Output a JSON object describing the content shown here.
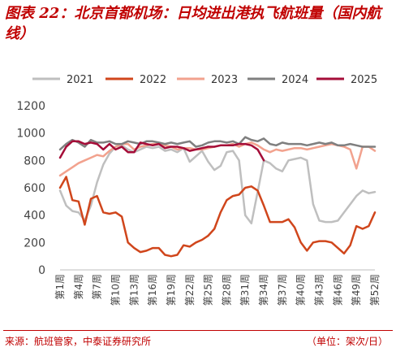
{
  "header": {
    "title": "图表 22：北京首都机场：日均进出港执飞航班量（国内航线）"
  },
  "footer": {
    "source": "来源：航班管家，中泰证券研究所",
    "unit": "（单位：架次/日）"
  },
  "chart_data": {
    "type": "line",
    "title": "图表 22：北京首都机场：日均进出港执飞航班量（国内航线）",
    "unit": "（单位：架次/日）",
    "ylim": [
      0,
      1200
    ],
    "yticks": [
      0,
      200,
      400,
      600,
      800,
      1000,
      1200
    ],
    "xlim": [
      1,
      52
    ],
    "xtick_positions": [
      1,
      4,
      7,
      10,
      13,
      16,
      19,
      22,
      25,
      28,
      31,
      34,
      37,
      40,
      43,
      46,
      49,
      52
    ],
    "xtick_labels": [
      "第1周",
      "第4周",
      "第7周",
      "第10周",
      "第13周",
      "第16周",
      "第19周",
      "第22周",
      "第25周",
      "第28周",
      "第31周",
      "第34周",
      "第37周",
      "第40周",
      "第43周",
      "第46周",
      "第49周",
      "第52周"
    ],
    "legend_position": "top",
    "grid": false,
    "series": [
      {
        "name": "2021",
        "color": "#bfbfbf",
        "x": [
          1,
          2,
          3,
          4,
          5,
          6,
          7,
          8,
          9,
          10,
          11,
          12,
          13,
          14,
          15,
          16,
          17,
          18,
          19,
          20,
          21,
          22,
          23,
          24,
          25,
          26,
          27,
          28,
          29,
          30,
          31,
          32,
          33,
          34,
          35,
          36,
          37,
          38,
          39,
          40,
          41,
          42,
          43,
          44,
          45,
          46,
          47,
          48,
          49,
          50,
          51,
          52
        ],
        "y": [
          580,
          470,
          430,
          420,
          360,
          470,
          640,
          770,
          850,
          900,
          910,
          880,
          860,
          880,
          900,
          890,
          900,
          870,
          880,
          860,
          890,
          790,
          830,
          870,
          790,
          730,
          760,
          860,
          870,
          800,
          400,
          340,
          570,
          800,
          780,
          740,
          720,
          800,
          810,
          820,
          800,
          480,
          360,
          350,
          350,
          360,
          420,
          480,
          540,
          580,
          560,
          570
        ]
      },
      {
        "name": "2022",
        "color": "#d0461c",
        "x": [
          1,
          2,
          3,
          4,
          5,
          6,
          7,
          8,
          9,
          10,
          11,
          12,
          13,
          14,
          15,
          16,
          17,
          18,
          19,
          20,
          21,
          22,
          23,
          24,
          25,
          26,
          27,
          28,
          29,
          30,
          31,
          32,
          33,
          34,
          35,
          36,
          37,
          38,
          39,
          40,
          41,
          42,
          43,
          44,
          45,
          46,
          47,
          48,
          49,
          50,
          51,
          52
        ],
        "y": [
          600,
          680,
          510,
          500,
          330,
          520,
          540,
          420,
          410,
          420,
          390,
          200,
          160,
          130,
          140,
          160,
          160,
          110,
          100,
          110,
          180,
          170,
          200,
          220,
          250,
          300,
          420,
          510,
          540,
          550,
          600,
          610,
          580,
          470,
          350,
          350,
          350,
          370,
          310,
          200,
          140,
          200,
          210,
          210,
          200,
          160,
          120,
          180,
          320,
          300,
          320,
          420
        ]
      },
      {
        "name": "2023",
        "color": "#f2a28e",
        "x": [
          1,
          2,
          3,
          4,
          5,
          6,
          7,
          8,
          9,
          10,
          11,
          12,
          13,
          14,
          15,
          16,
          17,
          18,
          19,
          20,
          21,
          22,
          23,
          24,
          25,
          26,
          27,
          28,
          29,
          30,
          31,
          32,
          33,
          34,
          35,
          36,
          37,
          38,
          39,
          40,
          41,
          42,
          43,
          44,
          45,
          46,
          47,
          48,
          49,
          50,
          51,
          52
        ],
        "y": [
          690,
          720,
          750,
          780,
          800,
          820,
          840,
          830,
          870,
          900,
          920,
          920,
          880,
          900,
          910,
          920,
          920,
          910,
          900,
          880,
          890,
          890,
          880,
          880,
          890,
          900,
          910,
          910,
          920,
          900,
          920,
          930,
          910,
          880,
          860,
          880,
          870,
          880,
          890,
          890,
          880,
          890,
          900,
          910,
          920,
          910,
          900,
          880,
          740,
          900,
          900,
          870
        ]
      },
      {
        "name": "2024",
        "color": "#7f7f7f",
        "x": [
          1,
          2,
          3,
          4,
          5,
          6,
          7,
          8,
          9,
          10,
          11,
          12,
          13,
          14,
          15,
          16,
          17,
          18,
          19,
          20,
          21,
          22,
          23,
          24,
          25,
          26,
          27,
          28,
          29,
          30,
          31,
          32,
          33,
          34,
          35,
          36,
          37,
          38,
          39,
          40,
          41,
          42,
          43,
          44,
          45,
          46,
          47,
          48,
          49,
          50,
          51,
          52
        ],
        "y": [
          880,
          920,
          950,
          930,
          900,
          950,
          930,
          930,
          940,
          920,
          920,
          940,
          930,
          920,
          940,
          940,
          930,
          920,
          930,
          920,
          930,
          940,
          900,
          910,
          930,
          940,
          940,
          930,
          940,
          920,
          970,
          950,
          940,
          960,
          920,
          910,
          930,
          920,
          920,
          920,
          910,
          920,
          930,
          920,
          930,
          910,
          910,
          920,
          910,
          900,
          900,
          900
        ]
      },
      {
        "name": "2025",
        "color": "#a50d38",
        "x": [
          1,
          2,
          3,
          4,
          5,
          6,
          7,
          8,
          9,
          10,
          11,
          12,
          13,
          14,
          15,
          16,
          17,
          18,
          19,
          20,
          21,
          22,
          23,
          24,
          25,
          26,
          27,
          28,
          29,
          30,
          31,
          32,
          33,
          34
        ],
        "y": [
          820,
          900,
          940,
          940,
          920,
          930,
          920,
          880,
          920,
          880,
          900,
          860,
          860,
          930,
          920,
          910,
          920,
          890,
          900,
          900,
          890,
          870,
          880,
          890,
          900,
          900,
          910,
          910,
          910,
          920,
          920,
          910,
          880,
          800
        ]
      }
    ]
  }
}
